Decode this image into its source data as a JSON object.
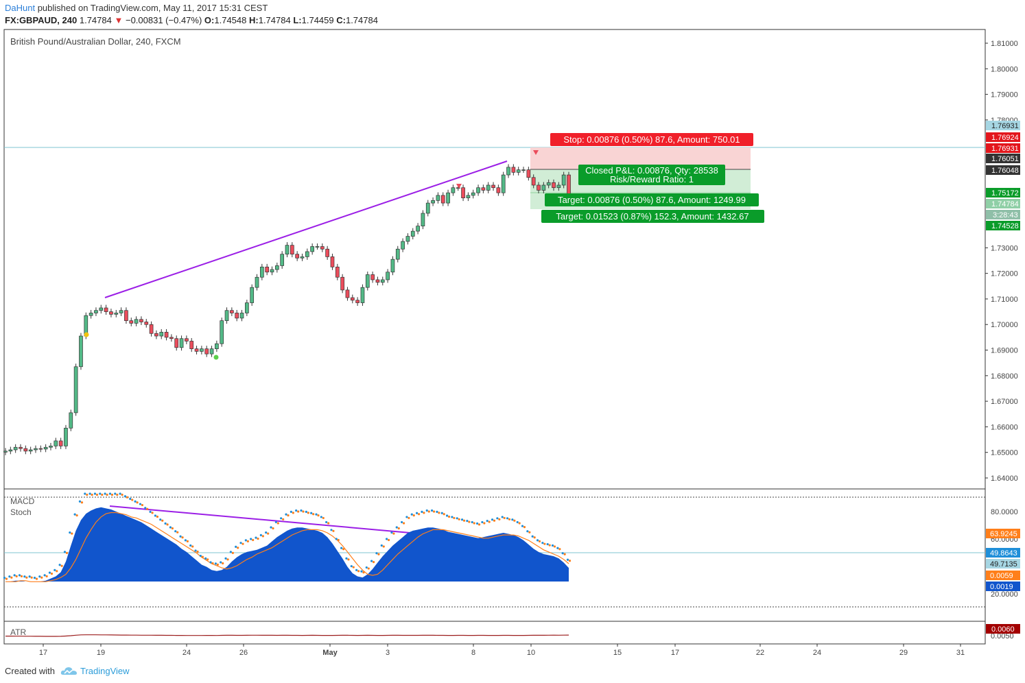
{
  "header": {
    "user": "DaHunt",
    "published": "published on TradingView.com, May 11, 2017 15:31 CEST",
    "symbol": "FX:GBPAUD, 240",
    "last": "1.74784",
    "change": "−0.00831 (−0.47%)",
    "o_label": "O:",
    "o_value": "1.74548",
    "h_label": "H:",
    "h_value": "1.74784",
    "l_label": "L:",
    "l_value": "1.74459",
    "c_label": "C:",
    "c_value": "1.74784"
  },
  "footer": {
    "created_with": "Created with",
    "brand": "TradingView"
  },
  "colors": {
    "bull": "#53b987",
    "bear": "#eb4d5c",
    "candle_border": "#333333",
    "trendline": "#9b1ee6",
    "stoch_fill": "#1155cc",
    "stoch_signal": "#ff7f1a",
    "stop_zone": "#f9d4d4",
    "target_zone": "#d1edd6",
    "stop_label": "#f0202a",
    "target_label": "#0a9c2a"
  },
  "chart_data": [
    {
      "type": "candlestick",
      "title": "British Pound/Australian Dollar, 240, FXCM",
      "ylim": [
        1.633,
        1.8165
      ],
      "y_ticks": [
        "1.81000",
        "1.80000",
        "1.79000",
        "1.78000",
        "1.73000",
        "1.72000",
        "1.71000",
        "1.70000",
        "1.69000",
        "1.68000",
        "1.67000",
        "1.66000",
        "1.65000",
        "1.64000"
      ],
      "x_ticks": [
        "17",
        "19",
        "24",
        "26",
        "May",
        "3",
        "8",
        "10",
        "15",
        "17",
        "22",
        "24",
        "29",
        "31"
      ],
      "closes": [
        1.6505,
        1.651,
        1.652,
        1.6515,
        1.6505,
        1.651,
        1.6515,
        1.6513,
        1.652,
        1.6525,
        1.6545,
        1.6525,
        1.6595,
        1.6655,
        1.6835,
        1.6955,
        1.7035,
        1.7045,
        1.7055,
        1.7065,
        1.705,
        1.704,
        1.7045,
        1.7055,
        1.7015,
        1.7005,
        1.702,
        1.701,
        1.7,
        1.6965,
        1.6955,
        1.697,
        1.695,
        1.6945,
        1.691,
        1.6945,
        1.6935,
        1.6905,
        1.6895,
        1.6905,
        1.6885,
        1.6905,
        1.6925,
        1.7015,
        1.7055,
        1.7045,
        1.7025,
        1.7045,
        1.7085,
        1.7145,
        1.7185,
        1.7225,
        1.7205,
        1.7215,
        1.723,
        1.7275,
        1.731,
        1.7275,
        1.726,
        1.7265,
        1.7285,
        1.7305,
        1.7305,
        1.7295,
        1.7265,
        1.7225,
        1.7185,
        1.7135,
        1.7105,
        1.7095,
        1.7085,
        1.7145,
        1.7195,
        1.7175,
        1.7165,
        1.7175,
        1.7205,
        1.7255,
        1.7295,
        1.7325,
        1.7345,
        1.7365,
        1.7385,
        1.7435,
        1.7475,
        1.7485,
        1.7505,
        1.7475,
        1.7515,
        1.7535,
        1.7535,
        1.7495,
        1.7505,
        1.7515,
        1.7535,
        1.7525,
        1.7545,
        1.7535,
        1.7515,
        1.7585,
        1.7615,
        1.7595,
        1.7605,
        1.7605,
        1.7575,
        1.7545,
        1.7525,
        1.7545,
        1.7555,
        1.7535,
        1.7545,
        1.7585,
        1.7478
      ],
      "stop_level": "1.76931",
      "entry_level": "1.76048",
      "target_level": "1.75172"
    },
    {
      "type": "line",
      "name": "MACD Stoch",
      "label1": "MACD",
      "label2": "Stoch",
      "y_ticks": [
        "80.0000",
        "60.0000",
        "20.0000"
      ],
      "stoch": [
        13,
        14,
        15,
        15,
        14,
        14,
        13,
        14,
        15,
        17,
        19,
        23,
        33,
        48,
        62,
        72,
        78,
        81,
        83,
        84,
        83,
        82,
        80,
        78,
        76,
        74,
        72,
        70,
        67,
        64,
        61,
        58,
        55,
        52,
        49,
        45,
        42,
        38,
        34,
        30,
        28,
        25,
        24,
        25,
        28,
        33,
        37,
        40,
        42,
        43,
        44,
        46,
        48,
        52,
        56,
        59,
        62,
        64,
        65,
        65,
        64,
        63,
        62,
        60,
        56,
        50,
        43,
        36,
        28,
        22,
        19,
        18,
        21,
        26,
        32,
        38,
        43,
        48,
        52,
        56,
        60,
        62,
        63,
        64,
        65,
        65,
        64,
        63,
        61,
        60,
        59,
        58,
        57,
        56,
        55,
        56,
        57,
        58,
        59,
        60,
        59,
        58,
        56,
        53,
        49,
        45,
        42,
        40,
        39,
        38,
        36,
        32,
        27
      ],
      "signal": [
        14,
        14,
        14,
        15,
        15,
        14,
        14,
        14,
        14,
        15,
        16,
        18,
        21,
        27,
        35,
        45,
        55,
        63,
        70,
        75,
        78,
        79,
        79,
        78,
        77,
        75,
        74,
        72,
        70,
        68,
        65,
        62,
        59,
        56,
        53,
        50,
        47,
        44,
        41,
        37,
        34,
        31,
        29,
        27,
        26,
        27,
        29,
        32,
        35,
        37,
        40,
        42,
        44,
        46,
        49,
        52,
        55,
        58,
        60,
        62,
        63,
        63,
        63,
        62,
        60,
        57,
        53,
        48,
        42,
        36,
        30,
        25,
        21,
        20,
        21,
        25,
        30,
        35,
        40,
        44,
        48,
        52,
        56,
        59,
        61,
        63,
        63,
        63,
        62,
        61,
        60,
        59,
        58,
        57,
        56,
        55,
        55,
        56,
        57,
        58,
        58,
        58,
        57,
        55,
        53,
        50,
        47,
        44,
        42,
        40,
        38,
        35,
        31
      ],
      "last_value_1": "63.9245",
      "last_value_2": "49.8643",
      "last_value_3": "49.7135",
      "last_value_4": "0.0059",
      "last_value_5": "0.0019"
    },
    {
      "type": "line",
      "name": "ATR",
      "label": "ATR",
      "y_ticks": [
        "0.0050"
      ],
      "values": [
        0.0046,
        0.0046,
        0.0045,
        0.0045,
        0.0044,
        0.0044,
        0.0043,
        0.0043,
        0.0042,
        0.0042,
        0.0042,
        0.0043,
        0.0047,
        0.0052,
        0.0058,
        0.0063,
        0.0064,
        0.0064,
        0.0064,
        0.0063,
        0.0063,
        0.0062,
        0.0061,
        0.006,
        0.006,
        0.0059,
        0.0059,
        0.0058,
        0.0058,
        0.0058,
        0.0057,
        0.0057,
        0.0056,
        0.0056,
        0.0055,
        0.0055,
        0.0054,
        0.0054,
        0.0054,
        0.0054,
        0.0055,
        0.0055,
        0.0054,
        0.0056,
        0.0057,
        0.0057,
        0.0056,
        0.0056,
        0.0057,
        0.0058,
        0.0058,
        0.0057,
        0.0057,
        0.0057,
        0.0056,
        0.0057,
        0.0057,
        0.0056,
        0.0056,
        0.0055,
        0.0056,
        0.0057,
        0.0056,
        0.0055,
        0.0055,
        0.0055,
        0.0056,
        0.0057,
        0.0057,
        0.0056,
        0.0055,
        0.0056,
        0.0057,
        0.0056,
        0.0055,
        0.0055,
        0.0056,
        0.0057,
        0.0057,
        0.0056,
        0.0056,
        0.0056,
        0.0056,
        0.0057,
        0.0057,
        0.0057,
        0.0056,
        0.0056,
        0.0055,
        0.0055,
        0.0056,
        0.0056,
        0.0055,
        0.0055,
        0.0056,
        0.0056,
        0.0055,
        0.0055,
        0.0055,
        0.0056,
        0.0056,
        0.0055,
        0.0055,
        0.0055,
        0.0056,
        0.0057,
        0.0057,
        0.0057,
        0.0058,
        0.0059,
        0.0058,
        0.0059,
        0.006
      ],
      "last_value": "0.0060"
    }
  ],
  "price_tags": {
    "t1": "1.76931",
    "t2": "1.76924",
    "t3": "1.76931",
    "t4": "1.76051",
    "t5": "1.76048",
    "t6": "1.75172",
    "t7": "1.74784",
    "t8": "3:28:43",
    "t9": "1.74528"
  },
  "labels": {
    "stop": "Stop: 0.00876 (0.50%) 87.6, Amount: 750.01",
    "pnl": "Closed P&L: 0.00876, Qty: 28538",
    "rr": "Risk/Reward Ratio: 1",
    "target1": "Target: 0.00876 (0.50%) 87.6, Amount: 1249.99",
    "target2": "Target: 0.01523 (0.87%) 152.3, Amount: 1432.67"
  }
}
